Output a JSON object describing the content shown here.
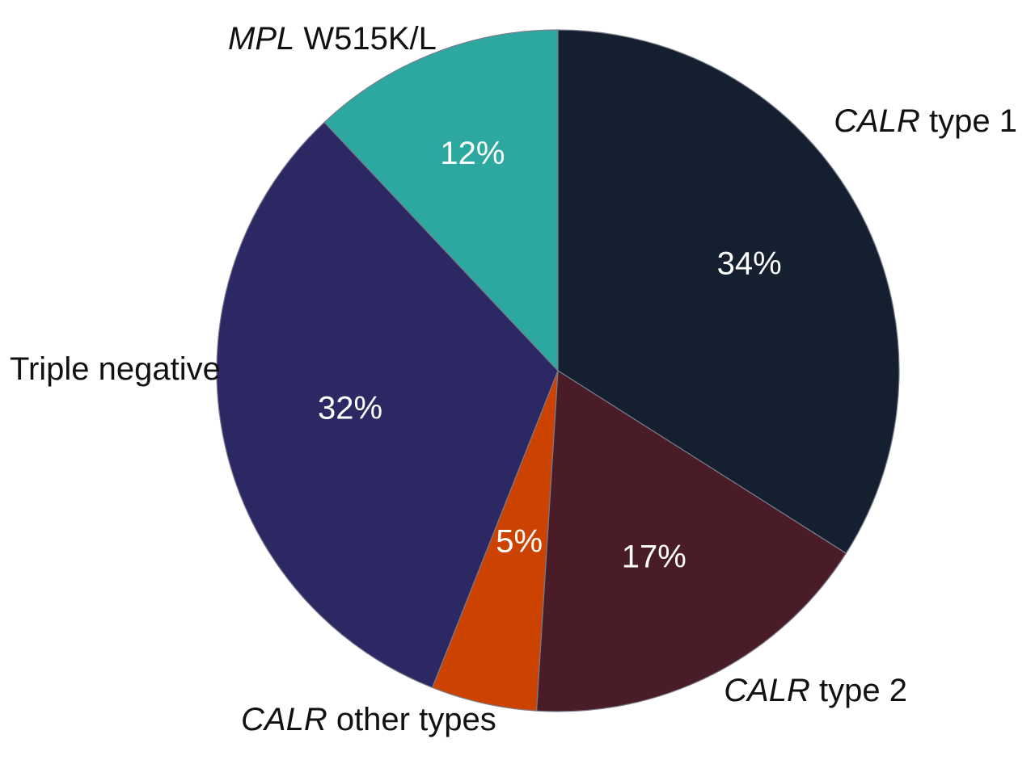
{
  "chart_data": {
    "type": "pie",
    "start_angle_deg": 0,
    "direction": "clockwise",
    "slices": [
      {
        "label_italic": "CALR",
        "label_rest": " type 1",
        "value": 34,
        "value_label": "34%",
        "color": "#14202f"
      },
      {
        "label_italic": "CALR",
        "label_rest": " type 2",
        "value": 17,
        "value_label": "17%",
        "color": "#4a1c28"
      },
      {
        "label_italic": "CALR",
        "label_rest": " other types",
        "value": 5,
        "value_label": "5%",
        "color": "#cc4200"
      },
      {
        "label_italic": "",
        "label_rest": "Triple negative",
        "value": 32,
        "value_label": "32%",
        "color": "#2b2863"
      },
      {
        "label_italic": "MPL",
        "label_rest": " W515K/L",
        "value": 12,
        "value_label": "12%",
        "color": "#2da8a0"
      }
    ]
  }
}
